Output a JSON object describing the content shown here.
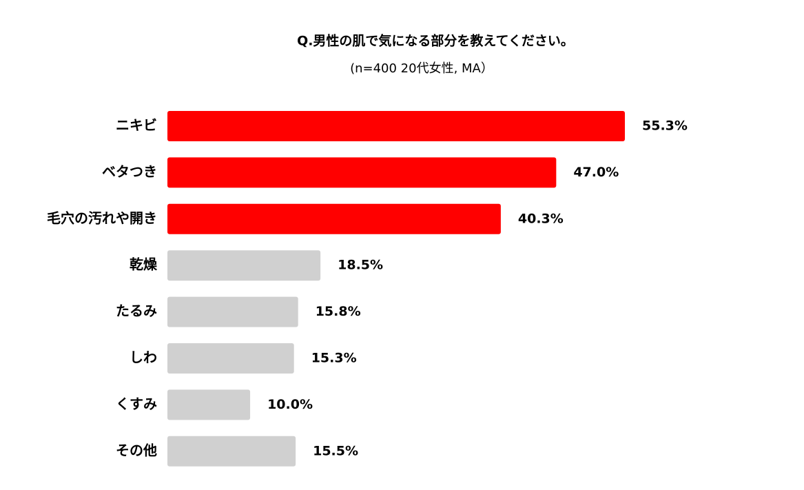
{
  "chart_data": {
    "type": "bar",
    "orientation": "horizontal",
    "title": "Q.男性の肌で気になる部分を教えてください。",
    "subtitle": "(n=400 20代女性, MA）",
    "categories": [
      "ニキビ",
      "ベタつき",
      "毛穴の汚れや開き",
      "乾燥",
      "たるみ",
      "しわ",
      "くすみ",
      "その他"
    ],
    "values": [
      55.3,
      47.0,
      40.3,
      18.5,
      15.8,
      15.3,
      10.0,
      15.5
    ],
    "value_labels": [
      "55.3%",
      "47.0%",
      "40.3%",
      "18.5%",
      "15.8%",
      "15.3%",
      "10.0%",
      "15.5%"
    ],
    "colors": [
      "#ff0000",
      "#ff0000",
      "#ff0000",
      "#d0d0d0",
      "#d0d0d0",
      "#d0d0d0",
      "#d0d0d0",
      "#d0d0d0"
    ]
  }
}
